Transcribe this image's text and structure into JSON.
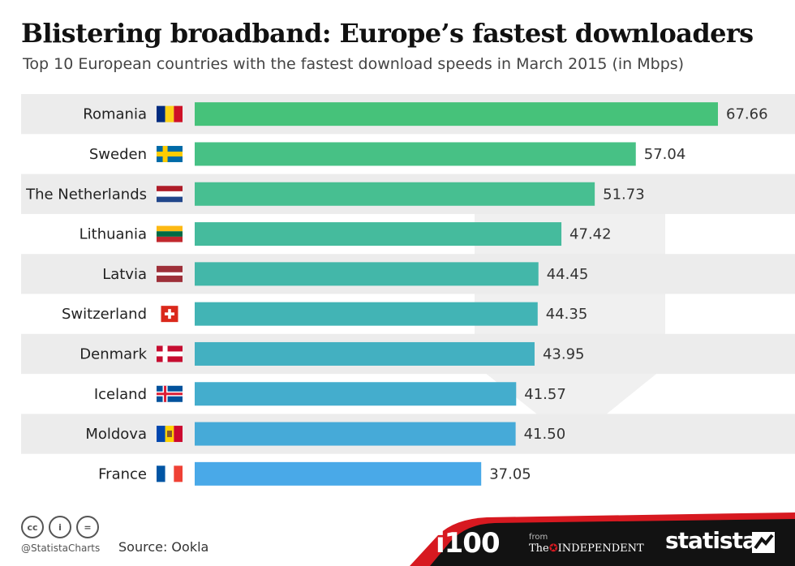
{
  "title": "Blistering broadband: Europe’s fastest downloaders",
  "subtitle": "Top 10 European countries with the fastest download speeds in March 2015 (in Mbps)",
  "chart_data": {
    "type": "bar",
    "orientation": "horizontal",
    "categories": [
      "Romania",
      "Sweden",
      "The Netherlands",
      "Lithuania",
      "Latvia",
      "Switzerland",
      "Denmark",
      "Iceland",
      "Moldova",
      "France"
    ],
    "values": [
      67.66,
      57.04,
      51.73,
      47.42,
      44.45,
      44.35,
      43.95,
      41.57,
      41.5,
      37.05
    ],
    "value_labels": [
      "67.66",
      "57.04",
      "51.73",
      "47.42",
      "44.45",
      "44.35",
      "43.95",
      "41.57",
      "41.50",
      "37.05"
    ],
    "xlim": [
      0,
      67.66
    ],
    "grid": false,
    "bar_colors": [
      "#46c27a",
      "#47c185",
      "#47bf91",
      "#45bb9d",
      "#43b7a9",
      "#42b4b5",
      "#43b0c1",
      "#44adcd",
      "#46aad8",
      "#49a9e8"
    ],
    "row_band_color": "#ececec",
    "flags": [
      "romania-flag",
      "sweden-flag",
      "netherlands-flag",
      "lithuania-flag",
      "latvia-flag",
      "switzerland-flag",
      "denmark-flag",
      "iceland-flag",
      "moldova-flag",
      "france-flag"
    ]
  },
  "footer": {
    "cc_icons": [
      "cc",
      "by",
      "nd"
    ],
    "cc_labels": [
      "cc",
      "i",
      "="
    ],
    "handle": "@StatistaCharts",
    "source": "Source: Ookla",
    "i100": "i100",
    "from": "from",
    "independent_the": "The",
    "independent_name": "INDEPENDENT",
    "statista": "statista"
  }
}
